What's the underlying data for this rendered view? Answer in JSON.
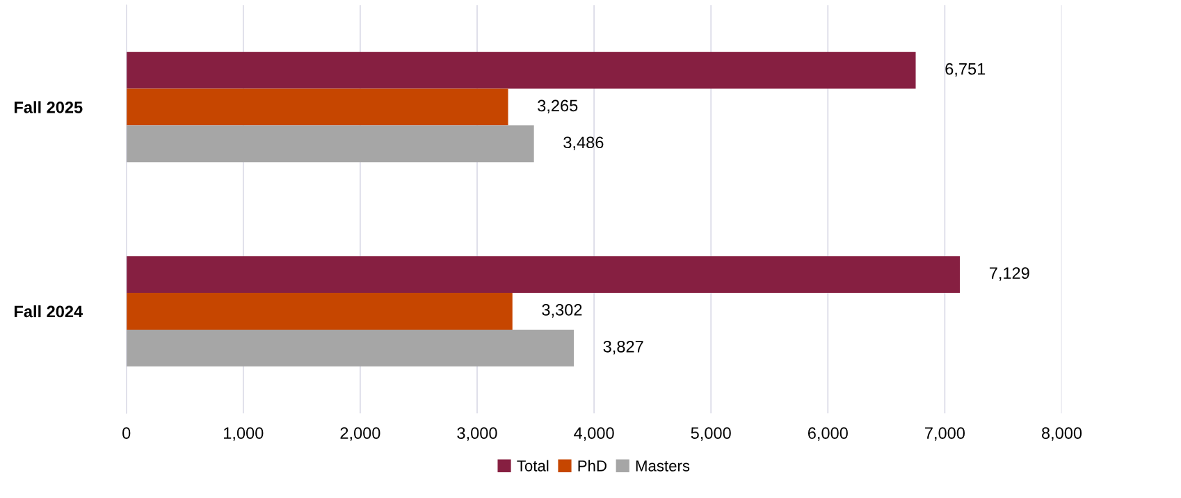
{
  "chart_data": {
    "type": "bar",
    "orientation": "horizontal",
    "categories": [
      "Fall 2025",
      "Fall 2024"
    ],
    "series": [
      {
        "name": "Total",
        "color": "#861f41",
        "values": [
          6751,
          7129
        ],
        "value_labels": [
          "6,751",
          "7,129"
        ]
      },
      {
        "name": "PhD",
        "color": "#c64600",
        "values": [
          3265,
          3302
        ],
        "value_labels": [
          "3,265",
          "3,302"
        ]
      },
      {
        "name": "Masters",
        "color": "#a6a6a6",
        "values": [
          3486,
          3827
        ],
        "value_labels": [
          "3,486",
          "3,827"
        ]
      }
    ],
    "xlim": [
      0,
      8000
    ],
    "xticks": [
      {
        "value": 0,
        "label": "0"
      },
      {
        "value": 1000,
        "label": "1,000"
      },
      {
        "value": 2000,
        "label": "2,000"
      },
      {
        "value": 3000,
        "label": "3,000"
      },
      {
        "value": 4000,
        "label": "4,000"
      },
      {
        "value": 5000,
        "label": "5,000"
      },
      {
        "value": 6000,
        "label": "6,000"
      },
      {
        "value": 7000,
        "label": "7,000"
      },
      {
        "value": 8000,
        "label": "8,000"
      }
    ],
    "grid": "x",
    "legend": "bottom"
  }
}
